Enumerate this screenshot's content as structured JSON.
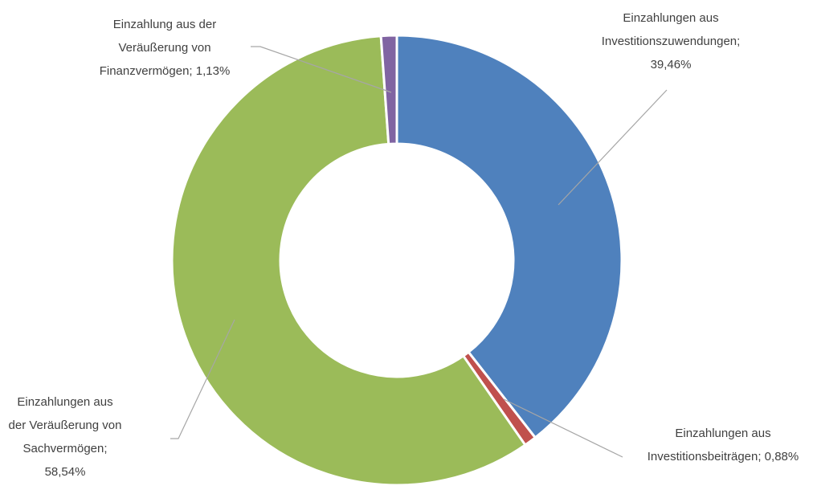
{
  "chart_data": {
    "type": "donut",
    "values": [
      39.46,
      0.88,
      58.54,
      1.13
    ],
    "value_labels": [
      "Einzahlungen aus Investitionszuwendungen; 39,46%",
      "Einzahlungen aus Investitionsbeiträgen; 0,88%",
      "Einzahlungen aus der Veräußerung von Sachvermögen; 58,54%",
      "Einzahlung aus der Veräußerung von Finanzvermögen; 1,13%"
    ],
    "colors": [
      "#4f81bd",
      "#c0504d",
      "#9bbb59",
      "#8064a2"
    ]
  }
}
